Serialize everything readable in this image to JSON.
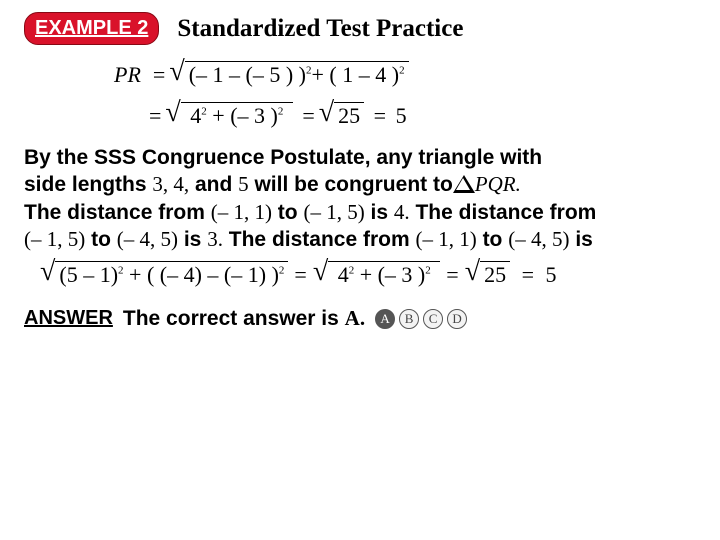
{
  "header": {
    "badge": "EXAMPLE 2",
    "title": "Standardized Test Practice"
  },
  "math": {
    "pr_label": "PR",
    "eq1_expr": "(– 1 – (– 5 ) )",
    "eq1_sup1": "2",
    "eq1_plus": "+ ( 1  –  4 )",
    "eq1_sup2": "2",
    "eq2_expr": "4",
    "eq2_sup1": "2",
    "eq2_plus": "  +  (– 3 )",
    "eq2_sup2": "2",
    "eq2_result_sqrt": "25",
    "eq2_result": "5"
  },
  "body": {
    "line1a": "By the SSS Congruence Postulate, any triangle with",
    "line2a": "side lengths ",
    "nums1": "3, 4,",
    "line2b": " and ",
    "nums2": "5",
    "line2c": " will be congruent to",
    "pqr": "PQR.",
    "line3a": "The distance from ",
    "pt1": "(– 1, 1)",
    "line3b": " to ",
    "pt2": "(– 1, 5)",
    "line3c": " is ",
    "d1": "4.",
    "line3d": " The distance from",
    "pt3": "(– 1, 5)",
    "line4a": " to ",
    "pt4": "(– 4, 5)",
    "line4b": " is ",
    "d2": "3.",
    "line4c": " The distance from ",
    "pt5": "(– 1, 1)",
    "line4d": " to ",
    "pt6": "(– 4, 5)",
    "line4e": " is"
  },
  "math2": {
    "expr1": "(5 – 1)",
    "sup1": "2",
    "expr2": "  + ( (– 4) – (– 1) )",
    "sup2": "2",
    "expr3": "4",
    "sup3": "2",
    "expr4": "  +  (– 3 )",
    "sup4": "2",
    "sqrt25": "25",
    "result": "5"
  },
  "answer": {
    "label": "ANSWER",
    "text": "The correct answer is ",
    "letter": "A.",
    "choices": [
      "A",
      "B",
      "C",
      "D"
    ],
    "filled_index": 0
  },
  "colors": {
    "badge_bg": "#d9122a",
    "badge_text": "#ffffff"
  }
}
